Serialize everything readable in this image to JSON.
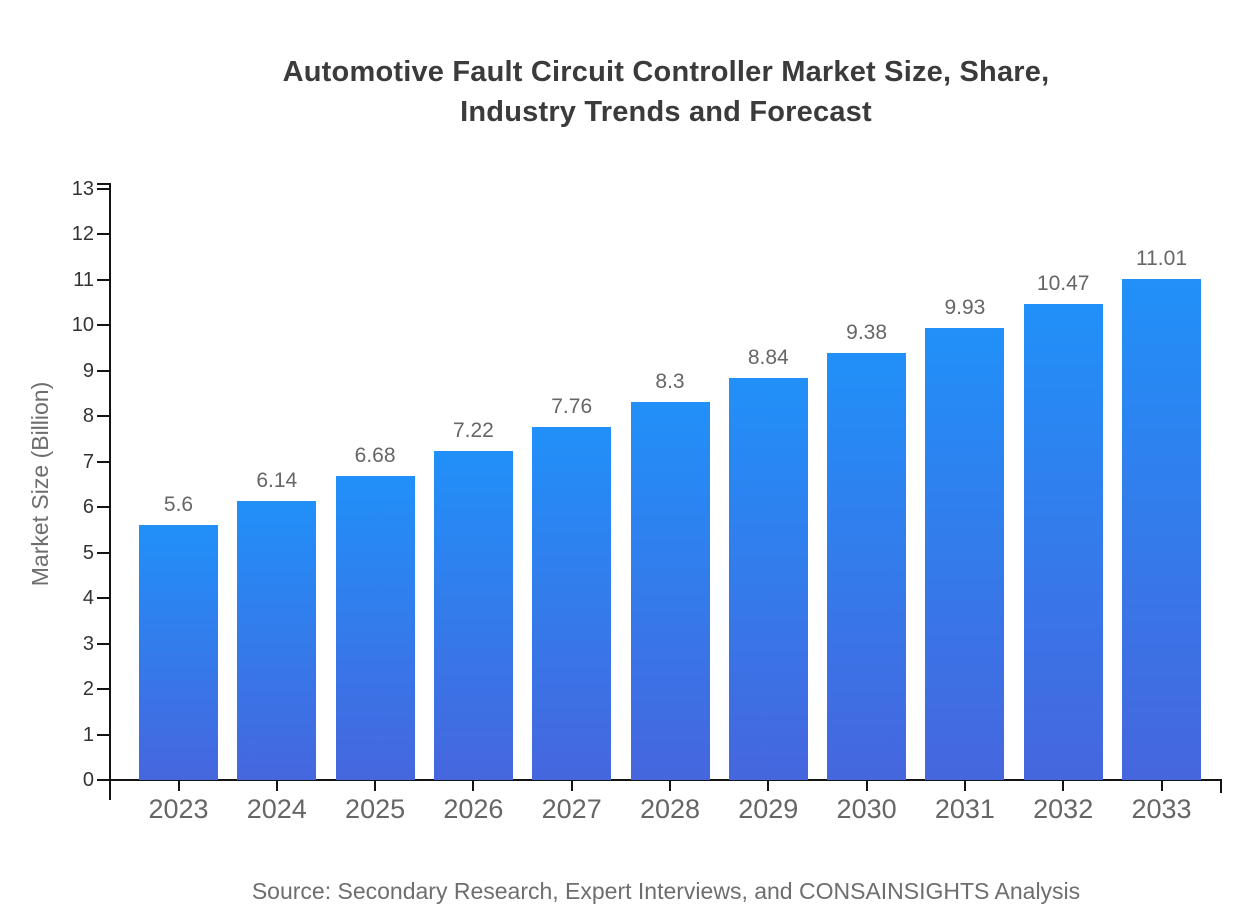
{
  "page": {
    "background": "#ffffff"
  },
  "chart_data": {
    "type": "bar",
    "title": "Automotive Fault Circuit Controller Market Size, Share, Industry Trends and Forecast",
    "title_lines": [
      "Automotive Fault Circuit Controller Market Size, Share,",
      "Industry Trends and Forecast"
    ],
    "categories": [
      "2023",
      "2024",
      "2025",
      "2026",
      "2027",
      "2028",
      "2029",
      "2030",
      "2031",
      "2032",
      "2033"
    ],
    "values": [
      5.6,
      6.14,
      6.68,
      7.22,
      7.76,
      8.3,
      8.84,
      9.38,
      9.93,
      10.47,
      11.01
    ],
    "xlabel": "",
    "ylabel": "Market Size (Billion)",
    "ylim": [
      0,
      13
    ],
    "ytick_step": 1,
    "grid": false,
    "legend_position": "none",
    "value_labels_shown": true,
    "bar_gradient_top": "#2190f8",
    "bar_gradient_bottom": "#4666de"
  },
  "footer": {
    "source": "Source: Secondary Research, Expert Interviews, and CONSAINSIGHTS Analysis"
  },
  "colors": {
    "title": "#3b3b3b",
    "axis": "#141414",
    "ytick_label": "#333333",
    "xtick_label": "#666666",
    "value_label": "#666666",
    "ylabel": "#6e6e6e",
    "source": "#6e6e6e"
  }
}
